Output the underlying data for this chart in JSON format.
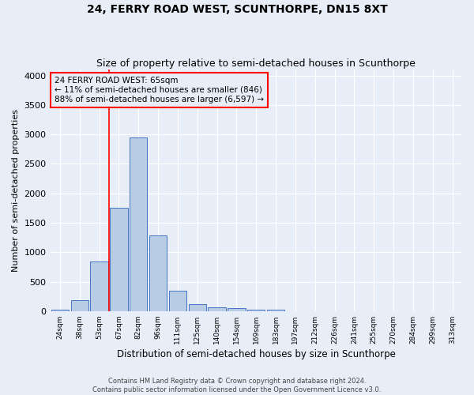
{
  "title": "24, FERRY ROAD WEST, SCUNTHORPE, DN15 8XT",
  "subtitle": "Size of property relative to semi-detached houses in Scunthorpe",
  "xlabel": "Distribution of semi-detached houses by size in Scunthorpe",
  "ylabel": "Number of semi-detached properties",
  "categories": [
    "24sqm",
    "38sqm",
    "53sqm",
    "67sqm",
    "82sqm",
    "96sqm",
    "111sqm",
    "125sqm",
    "140sqm",
    "154sqm",
    "169sqm",
    "183sqm",
    "197sqm",
    "212sqm",
    "226sqm",
    "241sqm",
    "255sqm",
    "270sqm",
    "284sqm",
    "299sqm",
    "313sqm"
  ],
  "values": [
    30,
    190,
    840,
    1760,
    2950,
    1280,
    340,
    125,
    65,
    45,
    30,
    30,
    0,
    0,
    0,
    0,
    0,
    0,
    0,
    0,
    0
  ],
  "bar_color": "#b8cce4",
  "bar_edge_color": "#4472c4",
  "annotation_title": "24 FERRY ROAD WEST: 65sqm",
  "annotation_line1": "← 11% of semi-detached houses are smaller (846)",
  "annotation_line2": "88% of semi-detached houses are larger (6,597) →",
  "footer1": "Contains HM Land Registry data © Crown copyright and database right 2024.",
  "footer2": "Contains public sector information licensed under the Open Government Licence v3.0.",
  "red_line_bin": 3,
  "ylim": [
    0,
    4100
  ],
  "yticks": [
    0,
    500,
    1000,
    1500,
    2000,
    2500,
    3000,
    3500,
    4000
  ],
  "background_color": "#e8eef8",
  "grid_color": "#ffffff",
  "title_fontsize": 10,
  "subtitle_fontsize": 9
}
